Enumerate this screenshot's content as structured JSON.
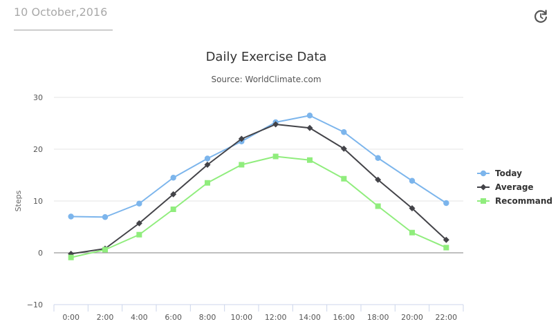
{
  "header": {
    "date": "10 October,2016"
  },
  "icons": {
    "refresh": "refresh-icon"
  },
  "colors": {
    "today": "#7cb5ec",
    "average": "#434348",
    "recommand": "#90ed7d",
    "grid": "#e6e6e6",
    "axis": "#ccd6eb"
  },
  "chart_data": {
    "type": "line",
    "title": "Daily Exercise Data",
    "subtitle": "Source: WorldClimate.com",
    "ylabel": "Steps",
    "xlabel": "",
    "ylim": [
      -10,
      30
    ],
    "yticks": [
      -10,
      0,
      10,
      20,
      30
    ],
    "grid": true,
    "legend": "right",
    "categories": [
      "0:00",
      "2:00",
      "4:00",
      "6:00",
      "8:00",
      "10:00",
      "12:00",
      "14:00",
      "16:00",
      "18:00",
      "20:00",
      "22:00"
    ],
    "series": [
      {
        "name": "Today",
        "marker": "circle",
        "values": [
          7.0,
          6.9,
          9.5,
          14.5,
          18.2,
          21.5,
          25.2,
          26.5,
          23.3,
          18.3,
          13.9,
          9.6
        ]
      },
      {
        "name": "Average",
        "marker": "diamond",
        "values": [
          -0.2,
          0.8,
          5.7,
          11.3,
          17.0,
          22.0,
          24.8,
          24.1,
          20.1,
          14.1,
          8.6,
          2.5
        ]
      },
      {
        "name": "Recommand",
        "marker": "square",
        "values": [
          -0.9,
          0.6,
          3.5,
          8.4,
          13.5,
          17.0,
          18.6,
          17.9,
          14.3,
          9.0,
          3.9,
          1.0
        ]
      }
    ]
  }
}
